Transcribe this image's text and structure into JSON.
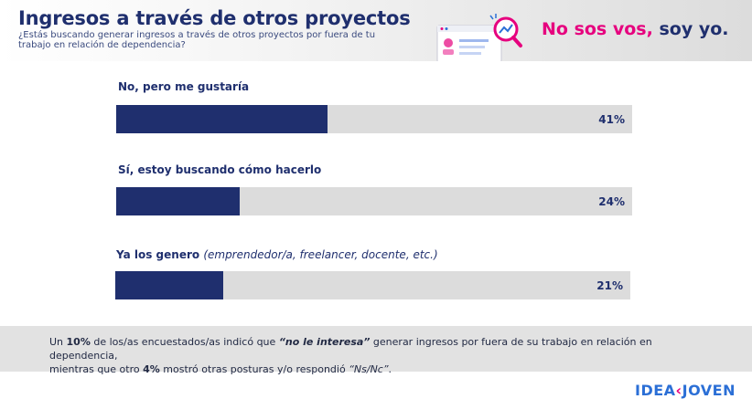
{
  "header": {
    "title": "Ingresos a través de otros proyectos",
    "subtitle": "¿Estás buscando generar ingresos a través de otros proyectos por fuera de tu trabajo en relación de dependencia?",
    "slogan_part1": "No sos vos,",
    "slogan_part2": "soy yo."
  },
  "chart_data": {
    "type": "bar",
    "orientation": "horizontal",
    "categories": [
      "No, pero me gustaría",
      "Sí, estoy buscando cómo hacerlo",
      "Ya los genero"
    ],
    "category_notes": [
      "",
      "",
      "(emprendedor/a, freelancer, docente, etc.)"
    ],
    "values": [
      41,
      24,
      21
    ],
    "value_labels": [
      "41%",
      "24%",
      "21%"
    ],
    "xlim": [
      0,
      100
    ],
    "unit": "%"
  },
  "footer": {
    "t1": "Un ",
    "t2": "10%",
    "t3": " de los/as encuestados/as indicó que ",
    "t4": "“no le interesa”",
    "t5": " generar ingresos por fuera de su trabajo en relación en dependencia,",
    "t6": "mientras que otro ",
    "t7": "4%",
    "t8": " mostró otras posturas y/o respondió ",
    "t9": "“Ns/Nc”",
    "t10": "."
  },
  "logo": {
    "part1": "IDEA",
    "part2": "‹",
    "part3": "JOVEN"
  },
  "colors": {
    "navy": "#1f2f6e",
    "pink": "#e6007e",
    "track": "#dcdcdc",
    "logo_blue": "#2b6fd6"
  }
}
